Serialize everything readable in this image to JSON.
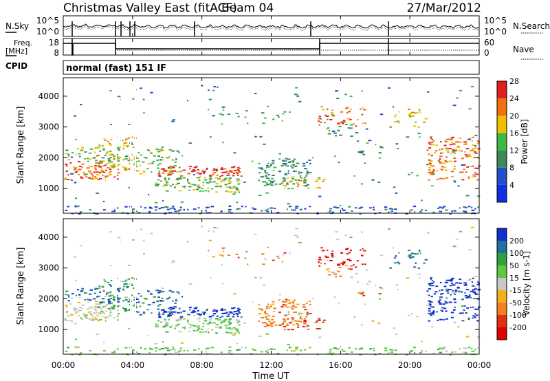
{
  "header": {
    "title": "Christmas Valley East (fitACF)",
    "beam": "Beam 04",
    "date": "27/Mar/2012"
  },
  "chart_data": [
    {
      "type": "line",
      "name": "noise-panel",
      "left_label": "N.Sky",
      "right_label": "N.Search",
      "left_ticks": [
        "10^5",
        "10^0"
      ],
      "right_ticks": [
        "10^5",
        "10^0"
      ]
    },
    {
      "type": "line",
      "name": "frequency-panel",
      "left_label_top": "Freq.",
      "left_label_bottom": "[MHz]",
      "left_ticks": [
        "18",
        "8"
      ],
      "right_label": "Nave",
      "right_ticks": [
        "60",
        "0"
      ],
      "cpid_label": "CPID",
      "cpid_text": "normal (fast) 151 IF"
    },
    {
      "type": "heatmap",
      "name": "power-panel",
      "ylabel": "Slant Range [km]",
      "ylim": [
        200,
        4600
      ],
      "yticks": [
        "1000",
        "2000",
        "3000",
        "4000"
      ],
      "colorbar_label": "Power [dB]",
      "colorbar_ticks": [
        "4",
        "8",
        "12",
        "16",
        "20",
        "24",
        "28"
      ],
      "colorbar_colors": [
        "#1030e0",
        "#2050c8",
        "#3a8a5a",
        "#40b848",
        "#f0c000",
        "#f07010",
        "#e02020"
      ]
    },
    {
      "type": "heatmap",
      "name": "velocity-panel",
      "ylabel": "Slant Range [km]",
      "ylim": [
        200,
        4600
      ],
      "yticks": [
        "1000",
        "2000",
        "3000",
        "4000"
      ],
      "colorbar_label": "Velocity [m s-1]",
      "colorbar_ticks": [
        "200",
        "100",
        "50",
        "15",
        "-15",
        "-50",
        "-100",
        "-200"
      ],
      "colorbar_colors": [
        "#1030d0",
        "#2070a0",
        "#30a040",
        "#60c840",
        "#c8c8c8",
        "#f0b020",
        "#f08020",
        "#e03010",
        "#e00000"
      ],
      "xlabel": "Time UT",
      "xticks": [
        "00:00",
        "04:00",
        "08:00",
        "12:00",
        "16:00",
        "20:00",
        "00:00"
      ]
    }
  ]
}
